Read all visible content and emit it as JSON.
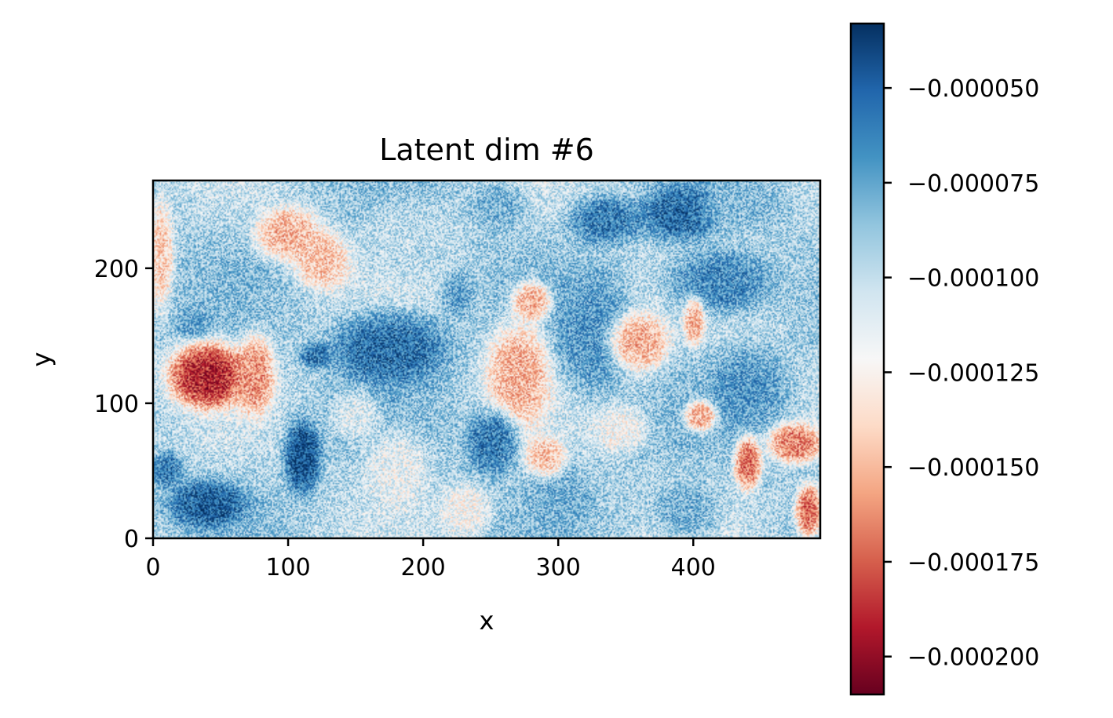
{
  "chart_data": {
    "type": "heatmap",
    "title": "Latent dim #6",
    "xlabel": "x",
    "ylabel": "y",
    "xlim": [
      0,
      494
    ],
    "ylim": [
      0,
      265
    ],
    "x_ticks": [
      {
        "value": 0,
        "label": "0"
      },
      {
        "value": 100,
        "label": "100"
      },
      {
        "value": 200,
        "label": "200"
      },
      {
        "value": 300,
        "label": "300"
      },
      {
        "value": 400,
        "label": "400"
      }
    ],
    "y_ticks": [
      {
        "value": 0,
        "label": "0"
      },
      {
        "value": 100,
        "label": "100"
      },
      {
        "value": 200,
        "label": "200"
      }
    ],
    "colormap": "RdBu",
    "colorbar": {
      "vmin": -0.00021,
      "vmax": -3.3e-05,
      "ticks": [
        {
          "value": -5e-05,
          "label": "−0.000050"
        },
        {
          "value": -7.5e-05,
          "label": "−0.000075"
        },
        {
          "value": -0.0001,
          "label": "−0.000100"
        },
        {
          "value": -0.000125,
          "label": "−0.000125"
        },
        {
          "value": -0.00015,
          "label": "−0.000150"
        },
        {
          "value": -0.000175,
          "label": "−0.000175"
        },
        {
          "value": -0.0002,
          "label": "−0.000200"
        }
      ]
    },
    "regions": [
      {
        "x": 40,
        "y": 120,
        "rx": 30,
        "ry": 25,
        "value": -0.00019
      },
      {
        "x": 75,
        "y": 120,
        "rx": 15,
        "ry": 30,
        "value": -0.00016
      },
      {
        "x": 110,
        "y": 60,
        "rx": 14,
        "ry": 28,
        "value": -4.5e-05
      },
      {
        "x": 40,
        "y": 25,
        "rx": 30,
        "ry": 18,
        "value": -5e-05
      },
      {
        "x": 10,
        "y": 50,
        "rx": 12,
        "ry": 14,
        "value": -6e-05
      },
      {
        "x": 175,
        "y": 140,
        "rx": 45,
        "ry": 28,
        "value": -5.5e-05
      },
      {
        "x": 120,
        "y": 135,
        "rx": 12,
        "ry": 10,
        "value": -6e-05
      },
      {
        "x": 100,
        "y": 225,
        "rx": 25,
        "ry": 20,
        "value": -0.00015
      },
      {
        "x": 125,
        "y": 205,
        "rx": 22,
        "ry": 22,
        "value": -0.000145
      },
      {
        "x": 5,
        "y": 210,
        "rx": 10,
        "ry": 40,
        "value": -0.00014
      },
      {
        "x": 30,
        "y": 160,
        "rx": 14,
        "ry": 12,
        "value": -7.5e-05
      },
      {
        "x": 190,
        "y": 220,
        "rx": 40,
        "ry": 30,
        "value": -0.0001
      },
      {
        "x": 270,
        "y": 120,
        "rx": 25,
        "ry": 40,
        "value": -0.00015
      },
      {
        "x": 280,
        "y": 175,
        "rx": 15,
        "ry": 15,
        "value": -0.00015
      },
      {
        "x": 325,
        "y": 150,
        "rx": 28,
        "ry": 45,
        "value": -7e-05
      },
      {
        "x": 360,
        "y": 145,
        "rx": 22,
        "ry": 22,
        "value": -0.00015
      },
      {
        "x": 335,
        "y": 235,
        "rx": 28,
        "ry": 18,
        "value": -6e-05
      },
      {
        "x": 390,
        "y": 240,
        "rx": 30,
        "ry": 22,
        "value": -5.5e-05
      },
      {
        "x": 420,
        "y": 190,
        "rx": 40,
        "ry": 25,
        "value": -6.5e-05
      },
      {
        "x": 440,
        "y": 110,
        "rx": 30,
        "ry": 30,
        "value": -7e-05
      },
      {
        "x": 405,
        "y": 90,
        "rx": 12,
        "ry": 12,
        "value": -0.00015
      },
      {
        "x": 440,
        "y": 55,
        "rx": 10,
        "ry": 20,
        "value": -0.00017
      },
      {
        "x": 475,
        "y": 70,
        "rx": 20,
        "ry": 15,
        "value": -0.000165
      },
      {
        "x": 485,
        "y": 20,
        "rx": 10,
        "ry": 20,
        "value": -0.00017
      },
      {
        "x": 395,
        "y": 20,
        "rx": 25,
        "ry": 20,
        "value": -8e-05
      },
      {
        "x": 250,
        "y": 70,
        "rx": 20,
        "ry": 25,
        "value": -6e-05
      },
      {
        "x": 230,
        "y": 20,
        "rx": 20,
        "ry": 20,
        "value": -0.00012
      },
      {
        "x": 300,
        "y": 30,
        "rx": 25,
        "ry": 25,
        "value": -8e-05
      },
      {
        "x": 180,
        "y": 50,
        "rx": 25,
        "ry": 30,
        "value": -0.000115
      },
      {
        "x": 225,
        "y": 180,
        "rx": 12,
        "ry": 18,
        "value": -7.5e-05
      },
      {
        "x": 150,
        "y": 90,
        "rx": 18,
        "ry": 18,
        "value": -0.00011
      },
      {
        "x": 400,
        "y": 160,
        "rx": 8,
        "ry": 18,
        "value": -0.00015
      },
      {
        "x": 255,
        "y": 245,
        "rx": 20,
        "ry": 18,
        "value": -8e-05
      },
      {
        "x": 440,
        "y": 245,
        "rx": 30,
        "ry": 18,
        "value": -8.5e-05
      },
      {
        "x": 345,
        "y": 80,
        "rx": 20,
        "ry": 18,
        "value": -0.00012
      },
      {
        "x": 290,
        "y": 60,
        "rx": 15,
        "ry": 15,
        "value": -0.000145
      }
    ]
  }
}
